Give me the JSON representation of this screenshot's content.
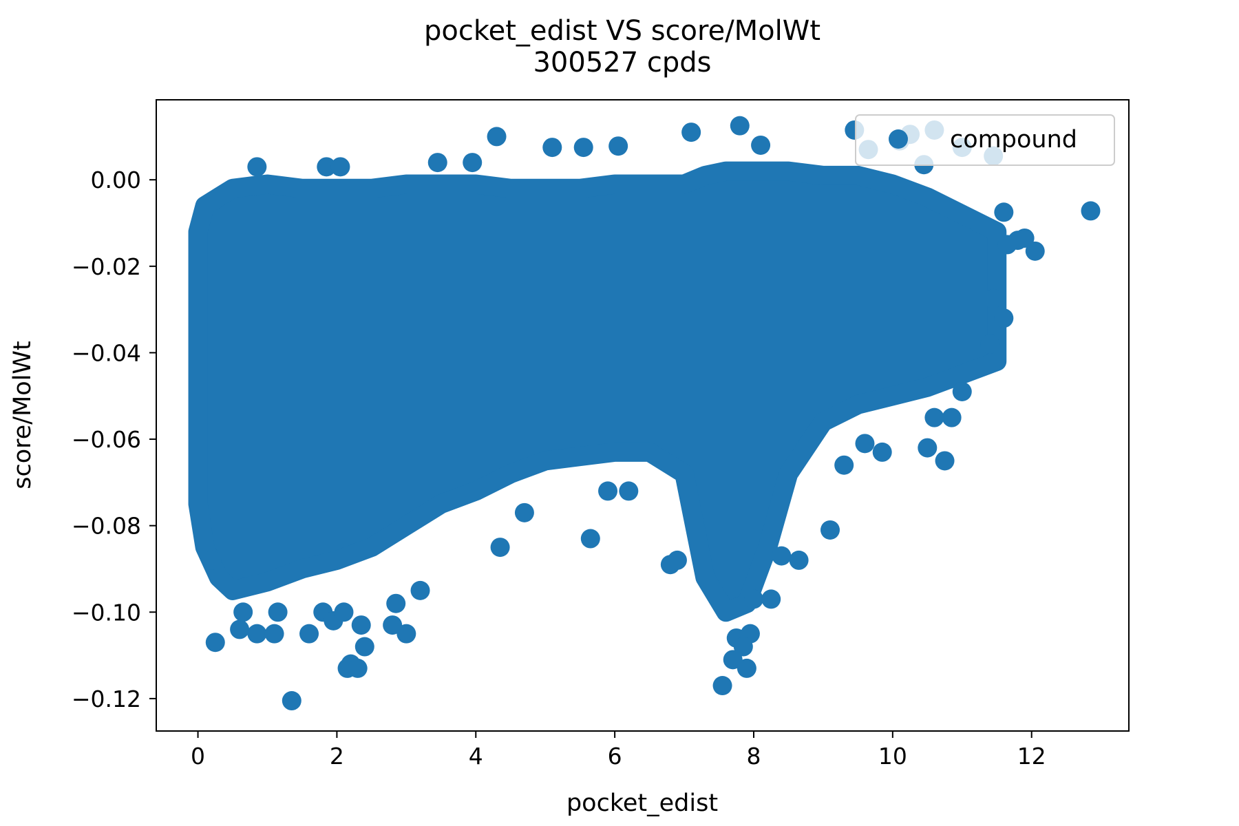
{
  "chart_data": {
    "type": "scatter",
    "title": "pocket_edist VS score/MolWt",
    "subtitle": "300527 cpds",
    "xlabel": "pocket_edist",
    "ylabel": "score/MolWt",
    "xlim": [
      -0.6,
      13.4
    ],
    "ylim": [
      -0.1275,
      0.0185
    ],
    "x_ticks": [
      0,
      2,
      4,
      6,
      8,
      10,
      12
    ],
    "y_ticks": [
      0.0,
      -0.02,
      -0.04,
      -0.06,
      -0.08,
      -0.1,
      -0.12
    ],
    "x_tick_labels": [
      "0",
      "2",
      "4",
      "6",
      "8",
      "10",
      "12"
    ],
    "y_tick_labels": [
      "0.00",
      "−0.02",
      "−0.04",
      "−0.06",
      "−0.08",
      "−0.10",
      "−0.12"
    ],
    "grid": false,
    "legend_position": "top-right",
    "color": "#1f77b4",
    "series": [
      {
        "name": "compound",
        "envelope": {
          "x": [
            0.0,
            0.1,
            0.3,
            0.5,
            1.0,
            1.5,
            2.0,
            2.5,
            3.0,
            3.5,
            4.0,
            4.5,
            5.0,
            5.5,
            6.0,
            6.5,
            7.0,
            7.3,
            7.6,
            7.9,
            8.2,
            8.5,
            9.0,
            9.5,
            10.0,
            10.5,
            11.0,
            11.5
          ],
          "top": [
            -0.012,
            -0.006,
            -0.004,
            -0.002,
            -0.001,
            -0.002,
            -0.002,
            -0.002,
            -0.001,
            -0.001,
            -0.001,
            -0.002,
            -0.002,
            -0.002,
            -0.001,
            -0.001,
            -0.001,
            0.001,
            0.002,
            0.002,
            0.002,
            0.002,
            0.001,
            0.001,
            -0.001,
            -0.004,
            -0.008,
            -0.012
          ],
          "bottom": [
            -0.075,
            -0.085,
            -0.092,
            -0.095,
            -0.093,
            -0.09,
            -0.088,
            -0.085,
            -0.08,
            -0.075,
            -0.072,
            -0.068,
            -0.065,
            -0.064,
            -0.063,
            -0.063,
            -0.068,
            -0.092,
            -0.1,
            -0.098,
            -0.085,
            -0.068,
            -0.056,
            -0.052,
            -0.05,
            -0.048,
            -0.045,
            -0.042
          ]
        },
        "outliers": [
          [
            0.25,
            -0.107
          ],
          [
            0.6,
            -0.104
          ],
          [
            0.65,
            -0.1
          ],
          [
            0.85,
            -0.105
          ],
          [
            1.1,
            -0.105
          ],
          [
            1.15,
            -0.1
          ],
          [
            1.35,
            -0.1205
          ],
          [
            1.6,
            -0.105
          ],
          [
            1.8,
            -0.1
          ],
          [
            1.95,
            -0.102
          ],
          [
            2.1,
            -0.1
          ],
          [
            2.15,
            -0.113
          ],
          [
            2.2,
            -0.112
          ],
          [
            2.3,
            -0.113
          ],
          [
            2.35,
            -0.103
          ],
          [
            2.4,
            -0.108
          ],
          [
            2.8,
            -0.103
          ],
          [
            3.0,
            -0.105
          ],
          [
            2.85,
            -0.098
          ],
          [
            3.2,
            -0.095
          ],
          [
            0.2,
            -0.088
          ],
          [
            4.35,
            -0.085
          ],
          [
            5.65,
            -0.083
          ],
          [
            4.7,
            -0.077
          ],
          [
            5.9,
            -0.072
          ],
          [
            6.2,
            -0.072
          ],
          [
            7.55,
            -0.117
          ],
          [
            7.7,
            -0.111
          ],
          [
            7.75,
            -0.106
          ],
          [
            7.9,
            -0.113
          ],
          [
            7.95,
            -0.105
          ],
          [
            7.85,
            -0.108
          ],
          [
            8.0,
            -0.097
          ],
          [
            8.25,
            -0.097
          ],
          [
            6.8,
            -0.089
          ],
          [
            6.9,
            -0.088
          ],
          [
            8.65,
            -0.088
          ],
          [
            8.4,
            -0.087
          ],
          [
            9.1,
            -0.081
          ],
          [
            9.3,
            -0.066
          ],
          [
            9.6,
            -0.061
          ],
          [
            9.85,
            -0.063
          ],
          [
            10.5,
            -0.062
          ],
          [
            10.75,
            -0.065
          ],
          [
            10.6,
            -0.055
          ],
          [
            10.85,
            -0.055
          ],
          [
            11.0,
            -0.049
          ],
          [
            4.3,
            0.01
          ],
          [
            3.45,
            0.004
          ],
          [
            3.95,
            0.004
          ],
          [
            1.85,
            0.003
          ],
          [
            2.05,
            0.003
          ],
          [
            0.85,
            0.003
          ],
          [
            5.1,
            0.0075
          ],
          [
            5.55,
            0.0075
          ],
          [
            6.05,
            0.0078
          ],
          [
            7.1,
            0.011
          ],
          [
            7.8,
            0.0125
          ],
          [
            8.1,
            0.008
          ],
          [
            9.45,
            0.0115
          ],
          [
            9.65,
            0.007
          ],
          [
            10.1,
            0.009
          ],
          [
            10.25,
            0.0105
          ],
          [
            10.6,
            0.0115
          ],
          [
            10.45,
            0.0035
          ],
          [
            11.0,
            0.0075
          ],
          [
            11.45,
            0.0055
          ],
          [
            12.85,
            -0.0072
          ],
          [
            11.8,
            -0.014
          ],
          [
            12.05,
            -0.0165
          ],
          [
            11.9,
            -0.0135
          ],
          [
            11.65,
            -0.015
          ],
          [
            11.6,
            -0.0075
          ],
          [
            11.6,
            -0.032
          ],
          [
            11.45,
            -0.0275
          ],
          [
            11.4,
            -0.038
          ]
        ]
      }
    ]
  }
}
